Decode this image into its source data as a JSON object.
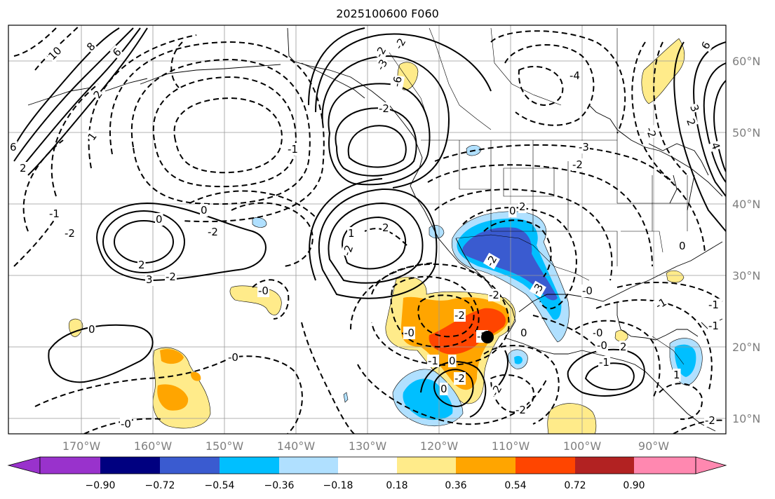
{
  "map": {
    "title": "2025100600 F060",
    "longitude_labels": [
      "170°W",
      "160°W",
      "150°W",
      "140°W",
      "130°W",
      "120°W",
      "110°W",
      "100°W",
      "90°W"
    ],
    "latitude_labels": [
      "60°N",
      "50°N",
      "40°N",
      "30°N",
      "20°N",
      "10°N"
    ],
    "contour_labels": [
      "10",
      "8",
      "6",
      "6",
      "2",
      "2",
      "1",
      "-1",
      "-2",
      "0",
      "-2",
      "0",
      "2",
      "3",
      "-2",
      "-1",
      "-2",
      "-2",
      "1",
      "2",
      "-2",
      "-2",
      "-3",
      "-6",
      "6",
      "-4",
      "-3",
      "-2",
      "-2",
      "2",
      "3",
      "4",
      "0",
      "-2",
      "-3",
      "-2",
      "-1",
      "0",
      "-0",
      "0",
      "-0",
      "-0",
      "-1",
      "-2",
      "0",
      "-1",
      "2",
      "-1",
      "-0",
      "-2",
      "-2",
      "2",
      "-1",
      "-2",
      "0",
      "-2",
      "1",
      "-2",
      "-0",
      "0",
      "-0",
      "-1",
      "0",
      "-2"
    ],
    "marker": {
      "name": "storm-center",
      "lon": -113.3,
      "lat": 21.7
    }
  },
  "colorbar": {
    "tick_labels": [
      "−0.90",
      "−0.72",
      "−0.54",
      "−0.36",
      "−0.18",
      "0.18",
      "0.36",
      "0.54",
      "0.72",
      "0.90"
    ],
    "colors": [
      "#9932cc",
      "#000080",
      "#3a5bd0",
      "#00bfff",
      "#b0e0ff",
      "#ffffff",
      "#ffeb8a",
      "#ffa500",
      "#ff4500",
      "#b22222",
      "#ff88b0"
    ]
  }
}
